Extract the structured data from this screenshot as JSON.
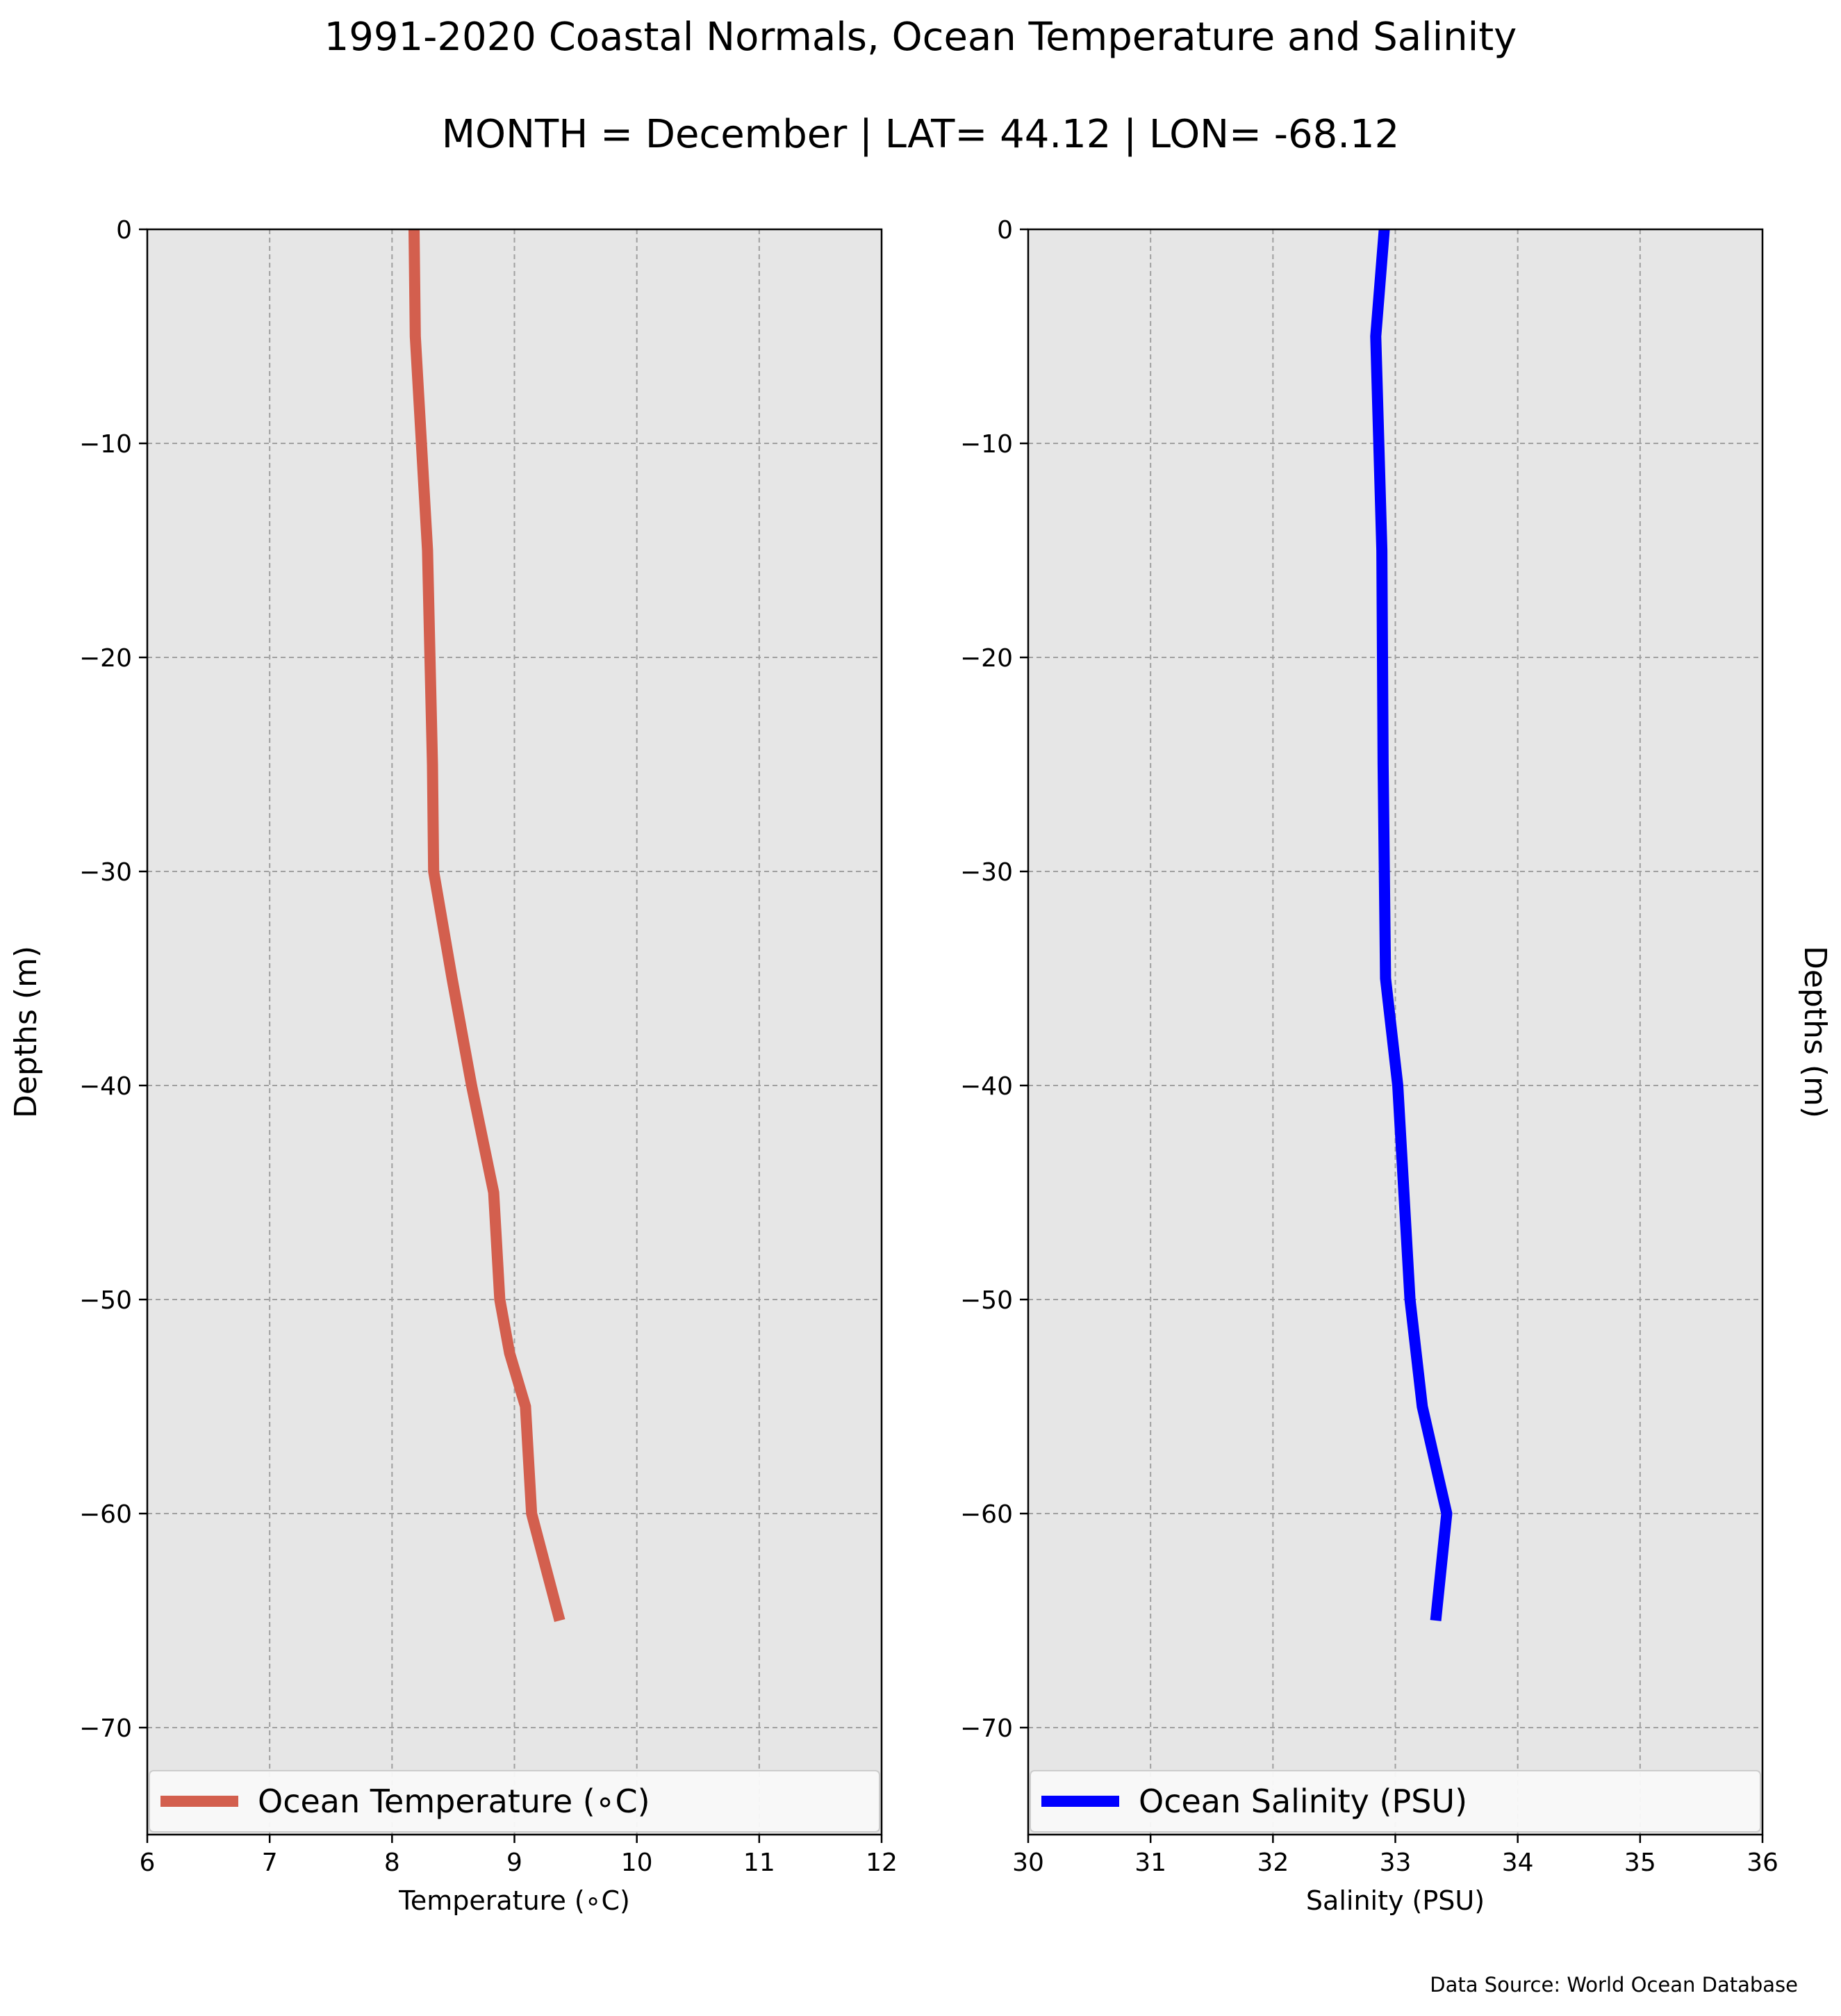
{
  "figure": {
    "title": "1991-2020 Coastal Normals, Ocean Temperature and Salinity",
    "subtitle": "MONTH = December | LAT= 44.12 | LON= -68.12",
    "source_note": "Data Source: World Ocean Database",
    "background_color": "#e6e6e6",
    "grid_color": "#a0a0a0"
  },
  "chart_data": [
    {
      "type": "line",
      "title": "",
      "xlabel": "Temperature ($^\\circ$C)",
      "xlabel_display": "Temperature (∘C)",
      "ylabel": "Depths (m)",
      "ylabel_position": "left",
      "xlim": [
        6,
        12
      ],
      "ylim": [
        -75,
        0
      ],
      "xticks": [
        6,
        7,
        8,
        9,
        10,
        11,
        12
      ],
      "xtick_labels": [
        "6",
        "7",
        "8",
        "9",
        "10",
        "11",
        "12"
      ],
      "yticks": [
        0,
        -10,
        -20,
        -30,
        -40,
        -50,
        -60,
        -70
      ],
      "ytick_labels": [
        "0",
        "−10",
        "−20",
        "−30",
        "−40",
        "−50",
        "−60",
        "−70"
      ],
      "grid": true,
      "legend": "lower-left",
      "series": [
        {
          "name": "Ocean Temperature (∘C)",
          "color": "#d35f4e",
          "points": [
            {
              "x": 8.18,
              "y": 0
            },
            {
              "x": 8.19,
              "y": -5
            },
            {
              "x": 8.29,
              "y": -15
            },
            {
              "x": 8.31,
              "y": -20
            },
            {
              "x": 8.33,
              "y": -25
            },
            {
              "x": 8.34,
              "y": -30
            },
            {
              "x": 8.49,
              "y": -35
            },
            {
              "x": 8.65,
              "y": -40
            },
            {
              "x": 8.83,
              "y": -45
            },
            {
              "x": 8.88,
              "y": -50
            },
            {
              "x": 8.96,
              "y": -52.5
            },
            {
              "x": 9.09,
              "y": -55
            },
            {
              "x": 9.14,
              "y": -60
            },
            {
              "x": 9.37,
              "y": -65
            }
          ]
        }
      ]
    },
    {
      "type": "line",
      "title": "",
      "xlabel": "Salinity (PSU)",
      "ylabel": "Depths (m)",
      "ylabel_position": "right",
      "xlim": [
        30,
        36
      ],
      "ylim": [
        -75,
        0
      ],
      "xticks": [
        30,
        31,
        32,
        33,
        34,
        35,
        36
      ],
      "xtick_labels": [
        "30",
        "31",
        "32",
        "33",
        "34",
        "35",
        "36"
      ],
      "yticks": [
        0,
        -10,
        -20,
        -30,
        -40,
        -50,
        -60,
        -70
      ],
      "ytick_labels": [
        "0",
        "−10",
        "−20",
        "−30",
        "−40",
        "−50",
        "−60",
        "−70"
      ],
      "grid": true,
      "legend": "lower-left",
      "series": [
        {
          "name": "Ocean Salinity (PSU)",
          "color": "#0000ff",
          "points": [
            {
              "x": 32.91,
              "y": 0
            },
            {
              "x": 32.84,
              "y": -5
            },
            {
              "x": 32.89,
              "y": -15
            },
            {
              "x": 32.9,
              "y": -25
            },
            {
              "x": 32.92,
              "y": -35
            },
            {
              "x": 33.02,
              "y": -40
            },
            {
              "x": 33.07,
              "y": -45
            },
            {
              "x": 33.12,
              "y": -50
            },
            {
              "x": 33.22,
              "y": -55
            },
            {
              "x": 33.42,
              "y": -60
            },
            {
              "x": 33.33,
              "y": -65
            }
          ]
        }
      ]
    }
  ]
}
